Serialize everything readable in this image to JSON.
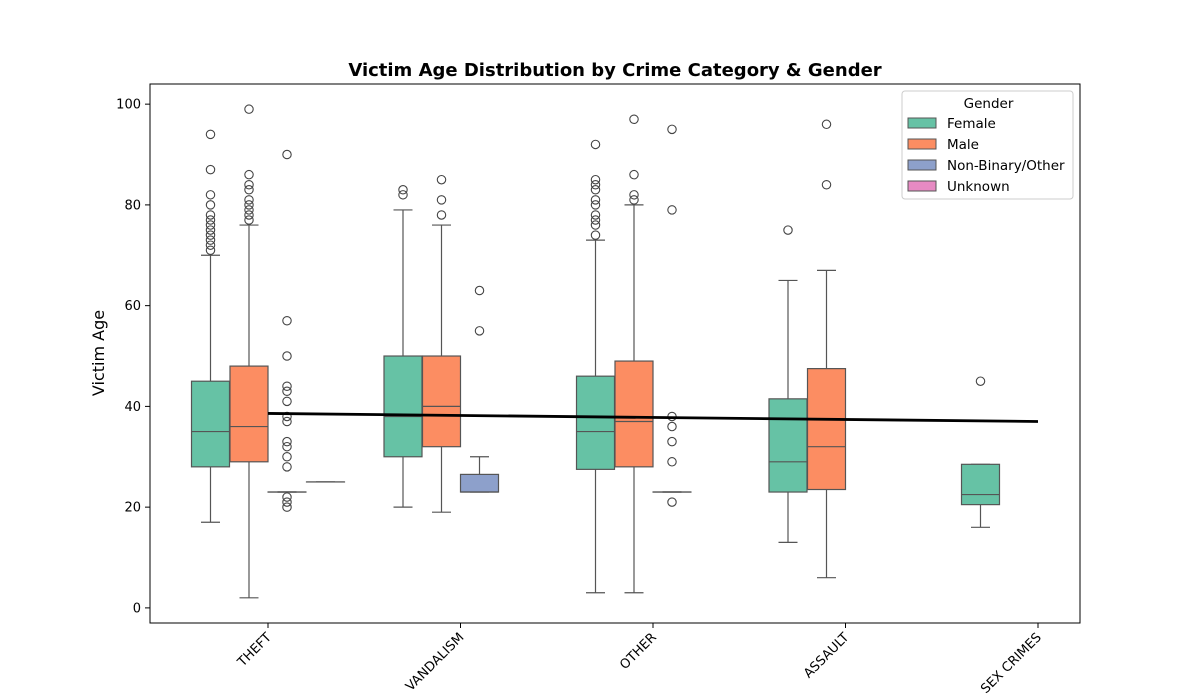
{
  "chart_data": {
    "type": "box",
    "title": "Victim Age Distribution by Crime Category & Gender",
    "xlabel": "",
    "ylabel": "Victim Age",
    "ylim": [
      -3,
      104
    ],
    "yticks": [
      0,
      20,
      40,
      60,
      80,
      100
    ],
    "grid": false,
    "categories": [
      "THEFT",
      "VANDALISM",
      "OTHER",
      "ASSAULT",
      "SEX CRIMES"
    ],
    "legend": {
      "title": "Gender",
      "placement": "top-right",
      "entries": [
        "Female",
        "Male",
        "Non-Binary/Other",
        "Unknown"
      ]
    },
    "colors": {
      "Female": "#66c2a5",
      "Male": "#fc8d62",
      "Non-Binary/Other": "#8da0cb",
      "Unknown": "#e78ac3",
      "trend": "#000000",
      "edge": "#555555"
    },
    "series": [
      {
        "name": "Female",
        "boxes": [
          {
            "category": "THEFT",
            "whisker_low": 17,
            "q1": 28,
            "median": 35,
            "q3": 45,
            "whisker_high": 70,
            "outliers": [
              71,
              72,
              73,
              74,
              75,
              76,
              77,
              78,
              80,
              82,
              87,
              94
            ]
          },
          {
            "category": "VANDALISM",
            "whisker_low": 20,
            "q1": 30,
            "median": 38,
            "q3": 50,
            "whisker_high": 79,
            "outliers": [
              82,
              83
            ]
          },
          {
            "category": "OTHER",
            "whisker_low": 3,
            "q1": 27.5,
            "median": 35,
            "q3": 46,
            "whisker_high": 73,
            "outliers": [
              74,
              76,
              77,
              78,
              80,
              81,
              83,
              84,
              85,
              92
            ]
          },
          {
            "category": "ASSAULT",
            "whisker_low": 13,
            "q1": 23,
            "median": 29,
            "q3": 41.5,
            "whisker_high": 65,
            "outliers": [
              75
            ]
          },
          {
            "category": "SEX CRIMES",
            "whisker_low": 16,
            "q1": 20.5,
            "median": 22.5,
            "q3": 28.5,
            "whisker_high": 28.5,
            "outliers": [
              45
            ]
          }
        ]
      },
      {
        "name": "Male",
        "boxes": [
          {
            "category": "THEFT",
            "whisker_low": 2,
            "q1": 29,
            "median": 36,
            "q3": 48,
            "whisker_high": 76,
            "outliers": [
              77,
              78,
              79,
              80,
              81,
              83,
              84,
              86,
              99
            ]
          },
          {
            "category": "VANDALISM",
            "whisker_low": 19,
            "q1": 32,
            "median": 40,
            "q3": 50,
            "whisker_high": 76,
            "outliers": [
              78,
              81,
              85
            ]
          },
          {
            "category": "OTHER",
            "whisker_low": 3,
            "q1": 28,
            "median": 37,
            "q3": 49,
            "whisker_high": 80,
            "outliers": [
              81,
              82,
              86,
              97
            ]
          },
          {
            "category": "ASSAULT",
            "whisker_low": 6,
            "q1": 23.5,
            "median": 32,
            "q3": 47.5,
            "whisker_high": 67,
            "outliers": [
              84,
              96
            ]
          }
        ]
      },
      {
        "name": "Non-Binary/Other",
        "boxes": [
          {
            "category": "THEFT",
            "whisker_low": 23,
            "q1": 23,
            "median": 23,
            "q3": 23,
            "whisker_high": 23,
            "outliers": [
              20,
              21,
              22,
              28,
              30,
              32,
              33,
              37,
              38,
              41,
              43,
              44,
              50,
              57,
              90
            ]
          },
          {
            "category": "VANDALISM",
            "whisker_low": 23,
            "q1": 23,
            "median": 23,
            "q3": 26.5,
            "whisker_high": 30,
            "outliers": [
              55,
              63
            ]
          },
          {
            "category": "OTHER",
            "whisker_low": 23,
            "q1": 23,
            "median": 23,
            "q3": 23,
            "whisker_high": 23,
            "outliers": [
              21,
              29,
              33,
              36,
              38,
              79,
              95
            ]
          }
        ]
      },
      {
        "name": "Unknown",
        "boxes": [
          {
            "category": "THEFT",
            "whisker_low": 25,
            "q1": 25,
            "median": 25,
            "q3": 25,
            "whisker_high": 25,
            "outliers": []
          }
        ]
      }
    ],
    "trend_line": {
      "x": [
        "THEFT",
        "SEX CRIMES"
      ],
      "y": [
        38.6,
        37.0
      ]
    }
  }
}
